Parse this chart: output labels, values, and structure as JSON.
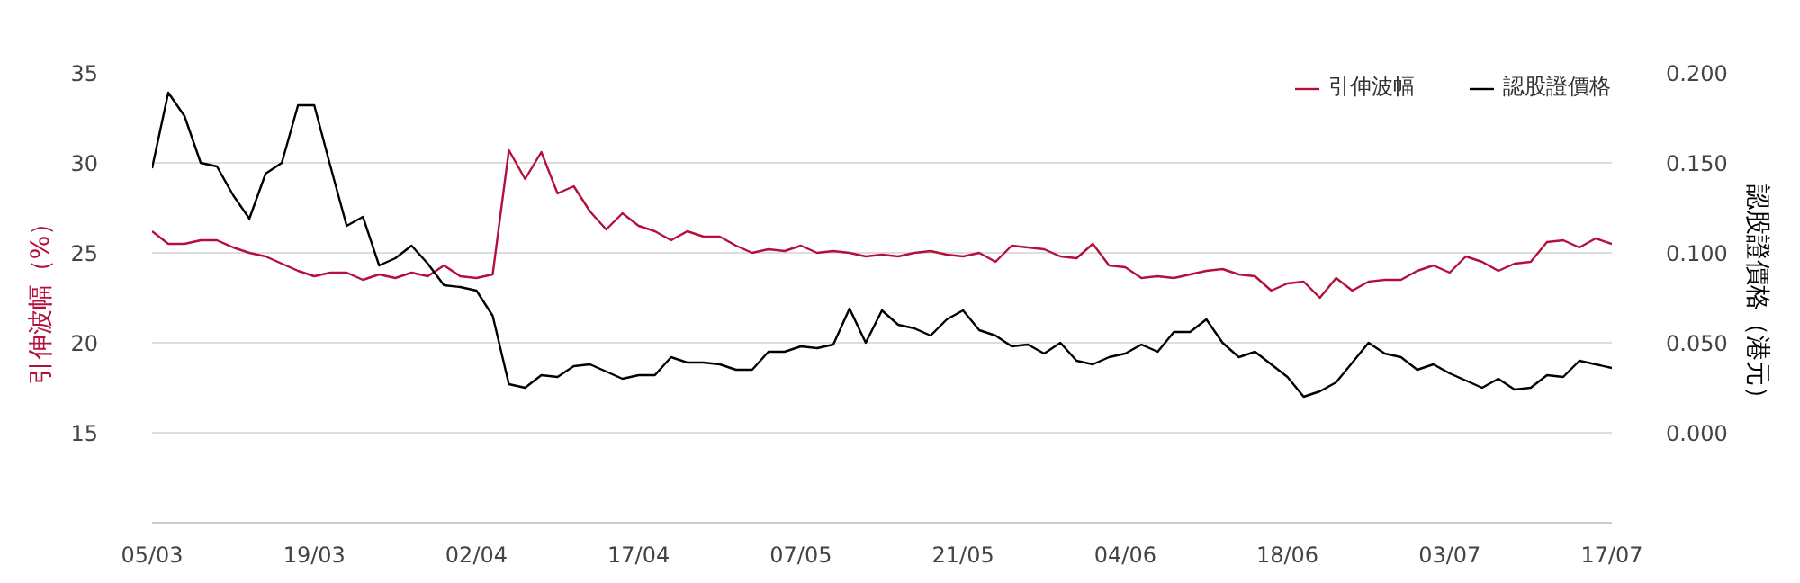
{
  "chart_data": {
    "type": "line",
    "ylabel": "引伸波幅（%）",
    "y2label": "認股證價格（港元）",
    "categories": [
      "05/03",
      null,
      null,
      null,
      null,
      null,
      null,
      null,
      null,
      null,
      "19/03",
      null,
      null,
      null,
      null,
      null,
      null,
      null,
      null,
      null,
      "02/04",
      null,
      null,
      null,
      null,
      null,
      null,
      null,
      null,
      null,
      "17/04",
      null,
      null,
      null,
      null,
      null,
      null,
      null,
      null,
      null,
      "07/05",
      null,
      null,
      null,
      null,
      null,
      null,
      null,
      null,
      null,
      "21/05",
      null,
      null,
      null,
      null,
      null,
      null,
      null,
      null,
      null,
      "04/06",
      null,
      null,
      null,
      null,
      null,
      null,
      null,
      null,
      null,
      "18/06",
      null,
      null,
      null,
      null,
      null,
      null,
      null,
      null,
      null,
      "03/07",
      null,
      null,
      null,
      null,
      null,
      null,
      null,
      null,
      null,
      "17/07"
    ],
    "series": [
      {
        "name": "引伸波幅",
        "color": "#b5103c",
        "values": [
          26.2,
          25.5,
          25.5,
          25.7,
          25.7,
          25.3,
          25.0,
          24.8,
          24.4,
          24.0,
          23.7,
          23.9,
          23.9,
          23.5,
          23.8,
          23.6,
          23.9,
          23.7,
          24.3,
          23.7,
          23.6,
          23.8,
          30.7,
          29.1,
          30.6,
          28.3,
          28.7,
          27.3,
          26.3,
          27.2,
          26.5,
          26.2,
          25.7,
          26.2,
          25.9,
          25.9,
          25.4,
          25.0,
          25.2,
          25.1,
          25.4,
          25.0,
          25.1,
          25.0,
          24.8,
          24.9,
          24.8,
          25.0,
          25.1,
          24.9,
          24.8,
          25.0,
          24.5,
          25.4,
          25.3,
          25.2,
          24.8,
          24.7,
          25.5,
          24.3,
          24.2,
          23.6,
          23.7,
          23.6,
          23.8,
          24.0,
          24.1,
          23.8,
          23.7,
          22.9,
          23.3,
          23.4,
          22.5,
          23.6,
          22.9,
          23.4,
          23.5,
          23.5,
          24.0,
          24.3,
          23.9,
          24.8,
          24.5,
          24.0,
          24.4,
          24.5,
          25.6,
          25.7,
          25.3,
          25.8,
          25.5
        ]
      },
      {
        "name": "認股證價格",
        "color": "#000000",
        "axis": "y2",
        "values": [
          0.147,
          0.189,
          0.176,
          0.15,
          0.148,
          0.132,
          0.119,
          0.144,
          0.15,
          0.182,
          0.182,
          0.148,
          0.115,
          0.12,
          0.093,
          0.097,
          0.104,
          0.094,
          0.082,
          0.081,
          0.079,
          0.065,
          0.027,
          0.025,
          0.032,
          0.031,
          0.037,
          0.038,
          0.034,
          0.03,
          0.032,
          0.032,
          0.042,
          0.039,
          0.039,
          0.038,
          0.035,
          0.035,
          0.045,
          0.045,
          0.048,
          0.047,
          0.049,
          0.069,
          0.05,
          0.068,
          0.06,
          0.058,
          0.054,
          0.063,
          0.068,
          0.057,
          0.054,
          0.048,
          0.049,
          0.044,
          0.05,
          0.04,
          0.038,
          0.042,
          0.044,
          0.049,
          0.045,
          0.056,
          0.056,
          0.063,
          0.05,
          0.042,
          0.045,
          0.038,
          0.031,
          0.02,
          0.023,
          0.028,
          0.039,
          0.05,
          0.044,
          0.042,
          0.035,
          0.038,
          0.033,
          0.029,
          0.025,
          0.03,
          0.024,
          0.025,
          0.032,
          0.031,
          0.04,
          0.038,
          0.036
        ]
      }
    ],
    "ylim": [
      10,
      35
    ],
    "yticks": [
      15,
      20,
      25,
      30,
      35
    ],
    "y2lim": [
      -0.05,
      0.2
    ],
    "y2ticks": [
      {
        "value": 0,
        "label": "0.000"
      },
      {
        "value": 0.05,
        "label": "0.050"
      },
      {
        "value": 0.1,
        "label": "0.100"
      },
      {
        "value": 0.15,
        "label": "0.150"
      },
      {
        "value": 0.2,
        "label": "0.200"
      }
    ],
    "grid": "y",
    "legend": "top right",
    "marker": "none",
    "line_style": "solid"
  }
}
